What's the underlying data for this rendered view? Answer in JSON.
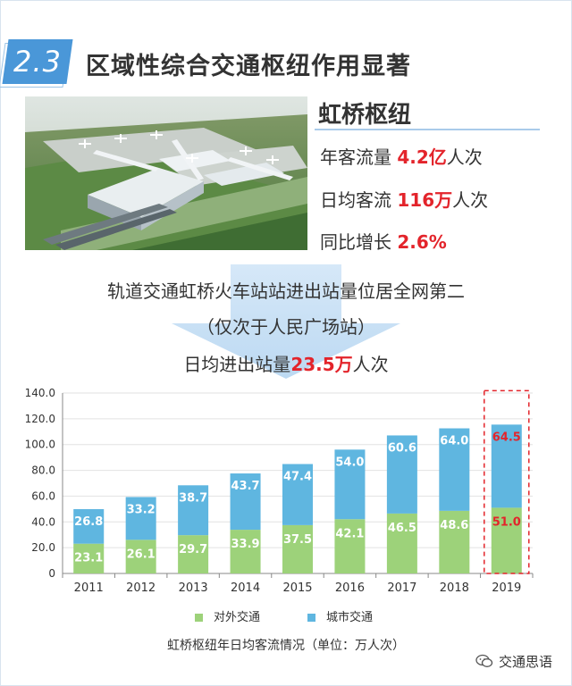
{
  "header": {
    "section_number": "2.3",
    "section_title": "区域性综合交通枢纽作用显著"
  },
  "hub": {
    "title": "虹桥枢纽",
    "stats": [
      {
        "label": "年客流量 ",
        "value": "4.2亿",
        "unit": "人次"
      },
      {
        "label": "日均客流 ",
        "value": "116万",
        "unit": "人次"
      },
      {
        "label": "同比增长 ",
        "value": "2.6%",
        "unit": ""
      }
    ]
  },
  "rail": {
    "line1": "轨道交通虹桥火车站站进出站量位居全网第二",
    "line2": "（仅次于人民广场站）",
    "line3_prefix": "日均进出站量",
    "line3_value": "23.5万",
    "line3_suffix": "人次"
  },
  "colors": {
    "external": "#9dd27a",
    "city": "#5fb6e0",
    "highlight": "#e3242b",
    "badge": "#4a97d8"
  },
  "chart_data": {
    "type": "bar",
    "stacked": true,
    "categories": [
      "2011",
      "2012",
      "2013",
      "2014",
      "2015",
      "2016",
      "2017",
      "2018",
      "2019"
    ],
    "series": [
      {
        "name": "对外交通",
        "values": [
          23.1,
          26.1,
          29.7,
          33.9,
          37.5,
          42.1,
          46.5,
          48.6,
          51.0
        ]
      },
      {
        "name": "城市交通",
        "values": [
          26.8,
          33.2,
          38.7,
          43.7,
          47.4,
          54.0,
          60.6,
          64.0,
          64.5
        ]
      }
    ],
    "ylim": [
      0,
      140
    ],
    "yticks": [
      "0",
      "20.0",
      "40.0",
      "60.0",
      "80.0",
      "100.0",
      "120.0",
      "140.0"
    ],
    "ytick_values": [
      0,
      20,
      40,
      60,
      80,
      100,
      120,
      140
    ],
    "highlight_category": "2019",
    "grid": true,
    "legend_position": "bottom",
    "caption": "虹桥枢纽年日均客流情况（单位：万人次）"
  },
  "watermark": "交通思语"
}
